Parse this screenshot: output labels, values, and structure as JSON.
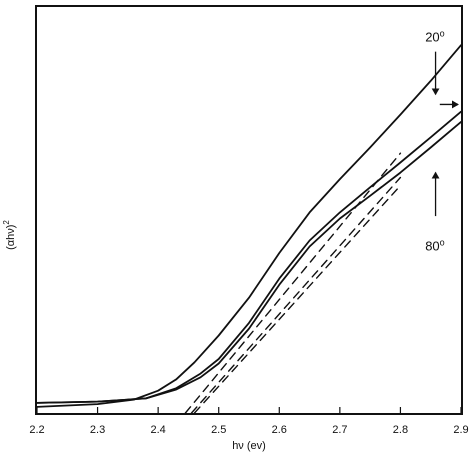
{
  "chart_data": {
    "type": "line",
    "title": "",
    "xlabel": "hν (ev)",
    "ylabel": "(αhν)²",
    "ylabel_base": "(αhν)",
    "ylabel_sup": "2",
    "xlim": [
      2.2,
      2.9
    ],
    "ylim": [
      0,
      100
    ],
    "x_ticks": [
      "2.2",
      "2.3",
      "2.4",
      "2.5",
      "2.6",
      "2.7",
      "2.8",
      "2.9"
    ],
    "y_ticks_shown": false,
    "grid": false,
    "legend": "none",
    "series": [
      {
        "curve": "upper",
        "style": "solid",
        "points": [
          [
            2.2,
            1.5
          ],
          [
            2.3,
            2.2
          ],
          [
            2.36,
            3.3
          ],
          [
            2.4,
            5.5
          ],
          [
            2.43,
            8.3
          ],
          [
            2.46,
            12.5
          ],
          [
            2.5,
            19.1
          ],
          [
            2.55,
            28.4
          ],
          [
            2.6,
            39.4
          ],
          [
            2.65,
            49.4
          ],
          [
            2.7,
            57.6
          ],
          [
            2.75,
            65.4
          ],
          [
            2.8,
            73.5
          ],
          [
            2.85,
            81.8
          ],
          [
            2.9,
            90.6
          ]
        ]
      },
      {
        "curve": "middle",
        "style": "solid",
        "points": [
          [
            2.2,
            2.5
          ],
          [
            2.3,
            2.8
          ],
          [
            2.38,
            3.6
          ],
          [
            2.43,
            6.1
          ],
          [
            2.47,
            9.7
          ],
          [
            2.5,
            13.3
          ],
          [
            2.55,
            22.2
          ],
          [
            2.6,
            33.1
          ],
          [
            2.65,
            42.5
          ],
          [
            2.7,
            49.4
          ],
          [
            2.75,
            55.6
          ],
          [
            2.8,
            61.7
          ],
          [
            2.85,
            67.9
          ],
          [
            2.9,
            74.2
          ]
        ]
      },
      {
        "curve": "lower",
        "style": "solid",
        "points": [
          [
            2.2,
            2.5
          ],
          [
            2.3,
            2.8
          ],
          [
            2.38,
            3.6
          ],
          [
            2.43,
            5.8
          ],
          [
            2.47,
            8.8
          ],
          [
            2.5,
            12.2
          ],
          [
            2.55,
            20.8
          ],
          [
            2.6,
            31.6
          ],
          [
            2.65,
            41.0
          ],
          [
            2.7,
            47.9
          ],
          [
            2.75,
            53.5
          ],
          [
            2.8,
            59.2
          ],
          [
            2.85,
            65.4
          ],
          [
            2.9,
            71.7
          ]
        ]
      },
      {
        "curve": "extrapolation-upper",
        "style": "dashed",
        "points": [
          [
            2.445,
            0
          ],
          [
            2.8,
            64.0
          ]
        ]
      },
      {
        "curve": "extrapolation-lower-1",
        "style": "dashed",
        "points": [
          [
            2.455,
            0
          ],
          [
            2.8,
            58.0
          ]
        ]
      },
      {
        "curve": "extrapolation-lower-2",
        "style": "dashed",
        "points": [
          [
            2.46,
            0
          ],
          [
            2.8,
            56.0
          ]
        ]
      }
    ],
    "annotations": [
      {
        "label": "20",
        "sup": "o",
        "at": [
          2.857,
          91.5
        ],
        "arrow_from": [
          2.858,
          89.0
        ],
        "arrow_to": [
          2.858,
          78.5
        ]
      },
      {
        "label": "80",
        "sup": "o",
        "at": [
          2.857,
          40.0
        ],
        "arrow_from": [
          2.858,
          48.5
        ],
        "arrow_to": [
          2.858,
          59.2
        ]
      },
      {
        "label": "",
        "sup": "",
        "arrow_from": [
          2.865,
          76.0
        ],
        "arrow_to": [
          2.895,
          76.0
        ]
      }
    ]
  }
}
